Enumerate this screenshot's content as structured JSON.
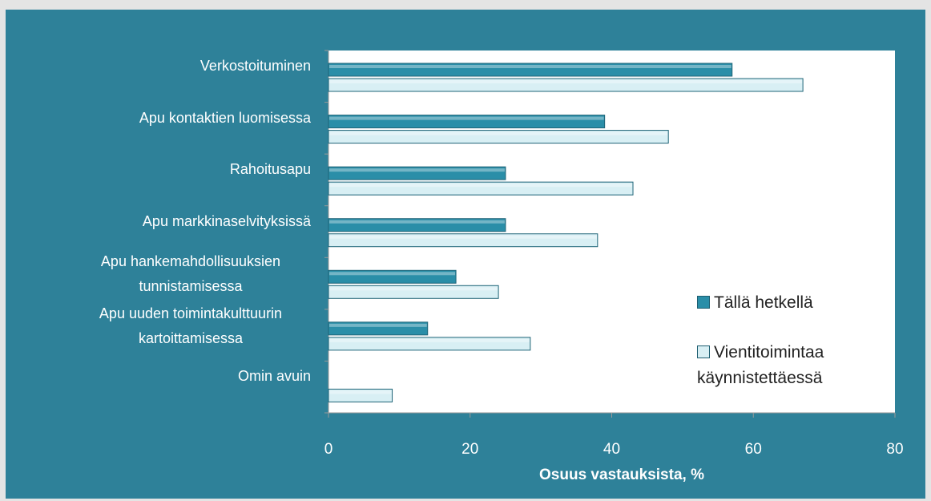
{
  "chart_data": {
    "type": "bar",
    "orientation": "horizontal",
    "x_label": "Osuus vastauksista, %",
    "categories": [
      "Verkostoituminen",
      "Apu kontaktien luomisessa",
      "Rahoitusapu",
      "Apu markkinaselvityksissä",
      "Apu hankemahdollisuuksien tunnistamisessa",
      "Apu uuden toimintakulttuurin kartoittamisessa",
      "Omin avuin"
    ],
    "series": [
      {
        "name": "Tällä hetkellä",
        "color": "#2a8ea8",
        "values": [
          57,
          39,
          25,
          25,
          18,
          14,
          null
        ]
      },
      {
        "name": "Vientitoimintaa käynnistettäessä",
        "color": "#d8eff4",
        "values": [
          67,
          48,
          43,
          38,
          24,
          28.5,
          9
        ]
      }
    ],
    "xlim": [
      0,
      80
    ],
    "xticks": [
      0,
      20,
      40,
      60,
      80
    ],
    "legend": "right"
  }
}
